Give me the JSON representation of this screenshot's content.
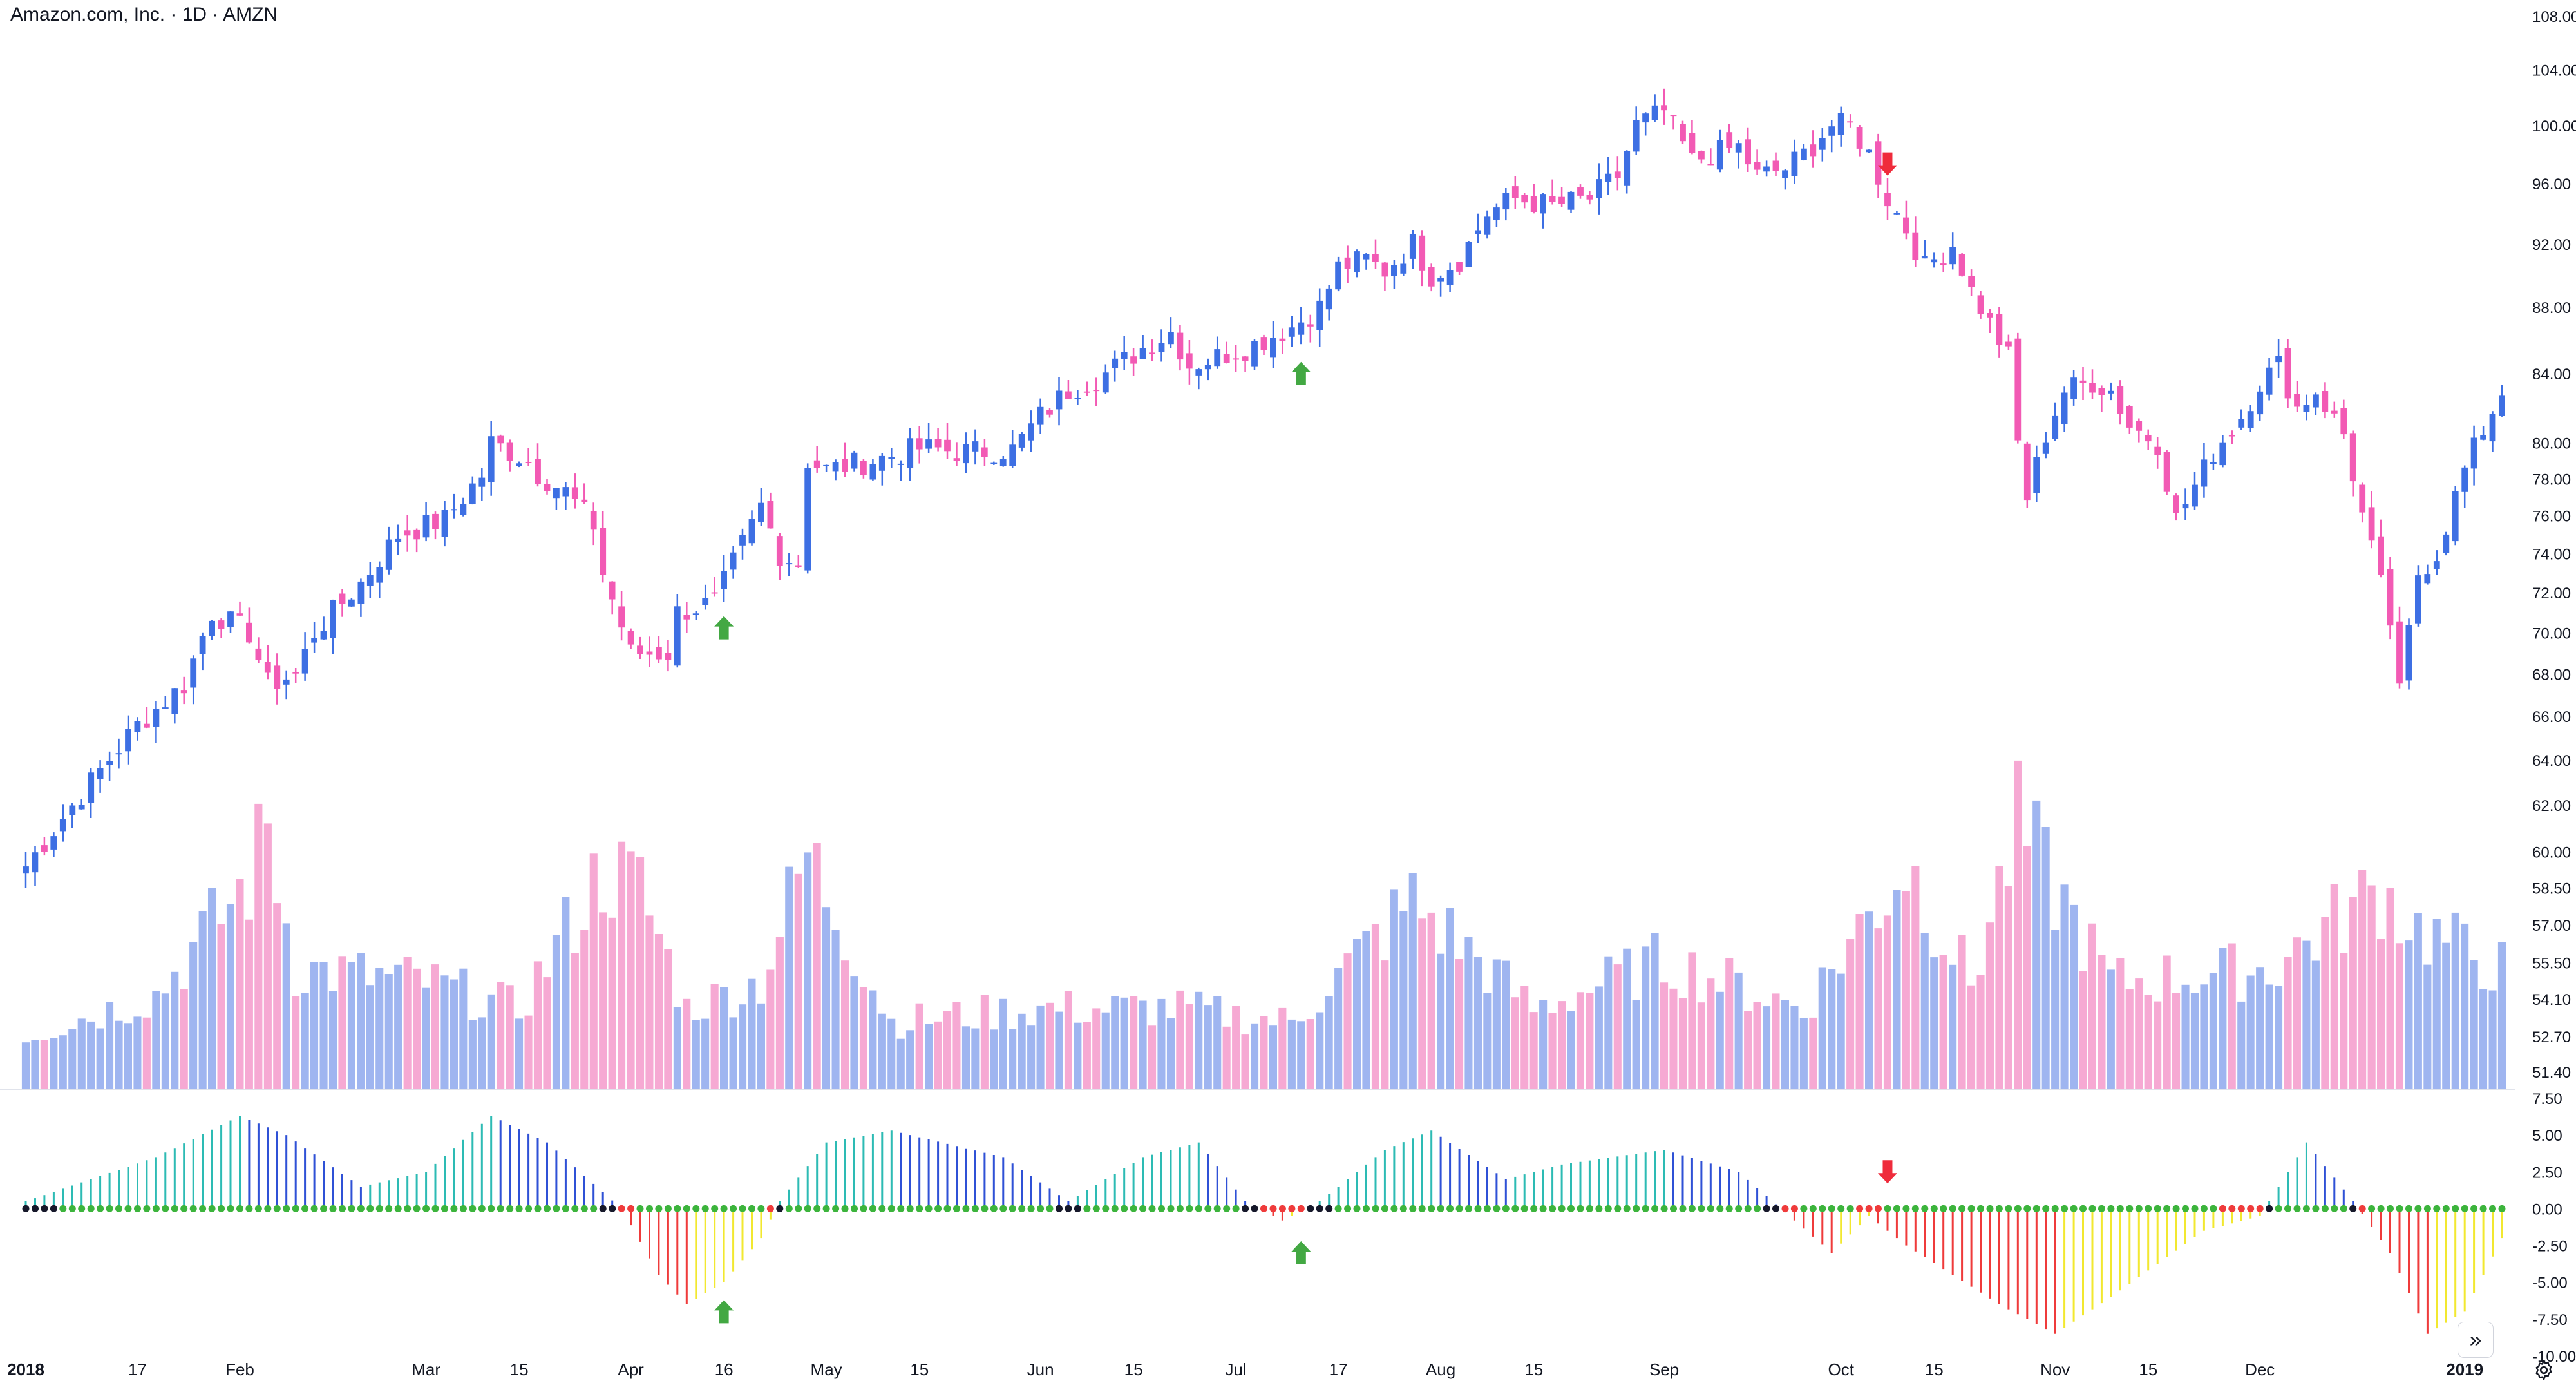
{
  "header": {
    "symbol_title": "Amazon.com, Inc. · 1D · AMZN"
  },
  "colors": {
    "up": "#3d6fe3",
    "down": "#f25ab4",
    "vol_up": "#9fb5f0",
    "vol_down": "#f6a9d3",
    "osc_strong_up": "#2dbbb4",
    "osc_weak_up": "#2f51d6",
    "osc_strong_down": "#ef3b3b",
    "osc_weak_down": "#f2e830",
    "dot_on": "#3cb43c",
    "dot_off": "#16182a",
    "dot_red": "#ef3b3b",
    "arrow_up": "#43a843",
    "arrow_down": "#ef2b3b",
    "grid": "#ffffff",
    "axis_text": "#131722",
    "pane_border": "#e0e3eb"
  },
  "chart_data": [
    {
      "type": "candlestick",
      "name": "price",
      "title": "Amazon.com, Inc. · 1D · AMZN",
      "y_scale": "log",
      "ylim": [
        50.8,
        108.0
      ],
      "y_ticks": [
        "108.00",
        "104.00",
        "100.00",
        "96.00",
        "92.00",
        "88.00",
        "84.00",
        "80.00",
        "78.00",
        "76.00",
        "74.00",
        "72.00",
        "70.00",
        "68.00",
        "66.00",
        "64.00",
        "62.00",
        "60.00",
        "58.50",
        "57.00",
        "55.50",
        "54.10",
        "52.70",
        "51.40"
      ],
      "x_ticks": [
        {
          "label": "2018",
          "bold": true,
          "d": "2018-01-01"
        },
        {
          "label": "17",
          "bold": false,
          "d": "2018-01-17"
        },
        {
          "label": "Feb",
          "bold": false,
          "d": "2018-02-01"
        },
        {
          "label": "Mar",
          "bold": false,
          "d": "2018-03-01"
        },
        {
          "label": "15",
          "bold": false,
          "d": "2018-03-15"
        },
        {
          "label": "Apr",
          "bold": false,
          "d": "2018-04-02"
        },
        {
          "label": "16",
          "bold": false,
          "d": "2018-04-16"
        },
        {
          "label": "May",
          "bold": false,
          "d": "2018-05-01"
        },
        {
          "label": "15",
          "bold": false,
          "d": "2018-05-15"
        },
        {
          "label": "Jun",
          "bold": false,
          "d": "2018-06-01"
        },
        {
          "label": "15",
          "bold": false,
          "d": "2018-06-15"
        },
        {
          "label": "Jul",
          "bold": false,
          "d": "2018-07-02"
        },
        {
          "label": "17",
          "bold": false,
          "d": "2018-07-17"
        },
        {
          "label": "Aug",
          "bold": false,
          "d": "2018-08-01"
        },
        {
          "label": "15",
          "bold": false,
          "d": "2018-08-15"
        },
        {
          "label": "Sep",
          "bold": false,
          "d": "2018-09-04"
        },
        {
          "label": "Oct",
          "bold": false,
          "d": "2018-10-01"
        },
        {
          "label": "15",
          "bold": false,
          "d": "2018-10-15"
        },
        {
          "label": "Nov",
          "bold": false,
          "d": "2018-11-01"
        },
        {
          "label": "15",
          "bold": false,
          "d": "2018-11-15"
        },
        {
          "label": "Dec",
          "bold": false,
          "d": "2018-12-03"
        },
        {
          "label": "2019",
          "bold": true,
          "d": "2019-01-02"
        }
      ],
      "closes": [
        [
          "2018-01-01",
          59.4
        ],
        [
          "2018-01-17",
          65.6
        ],
        [
          "2018-01-24",
          67.5
        ],
        [
          "2018-01-29",
          71.0
        ],
        [
          "2018-02-02",
          70.0
        ],
        [
          "2018-02-06",
          67.5
        ],
        [
          "2018-02-09",
          68.0
        ],
        [
          "2018-02-13",
          70.0
        ],
        [
          "2018-02-20",
          72.5
        ],
        [
          "2018-02-26",
          75.0
        ],
        [
          "2018-03-05",
          75.8
        ],
        [
          "2018-03-09",
          78.2
        ],
        [
          "2018-03-12",
          80.0
        ],
        [
          "2018-03-16",
          79.0
        ],
        [
          "2018-03-19",
          78.3
        ],
        [
          "2018-03-22",
          77.3
        ],
        [
          "2018-03-27",
          75.5
        ],
        [
          "2018-03-28",
          73.0
        ],
        [
          "2018-04-02",
          69.0
        ],
        [
          "2018-04-06",
          69.0
        ],
        [
          "2018-04-09",
          71.0
        ],
        [
          "2018-04-13",
          71.5
        ],
        [
          "2018-04-16",
          72.5
        ],
        [
          "2018-04-20",
          76.5
        ],
        [
          "2018-04-24",
          74.0
        ],
        [
          "2018-04-26",
          73.5
        ],
        [
          "2018-04-27",
          79.0
        ],
        [
          "2018-05-01",
          78.5
        ],
        [
          "2018-05-08",
          79.0
        ],
        [
          "2018-05-15",
          79.7
        ],
        [
          "2018-05-22",
          79.5
        ],
        [
          "2018-05-29",
          79.6
        ],
        [
          "2018-06-01",
          81.5
        ],
        [
          "2018-06-06",
          83.0
        ],
        [
          "2018-06-12",
          84.0
        ],
        [
          "2018-06-18",
          85.5
        ],
        [
          "2018-06-21",
          86.5
        ],
        [
          "2018-06-25",
          84.5
        ],
        [
          "2018-06-28",
          85.0
        ],
        [
          "2018-07-03",
          85.5
        ],
        [
          "2018-07-10",
          86.8
        ],
        [
          "2018-07-13",
          88.0
        ],
        [
          "2018-07-17",
          90.5
        ],
        [
          "2018-07-20",
          91.0
        ],
        [
          "2018-07-24",
          90.3
        ],
        [
          "2018-07-27",
          92.0
        ],
        [
          "2018-07-31",
          90.0
        ],
        [
          "2018-08-03",
          91.0
        ],
        [
          "2018-08-08",
          94.0
        ],
        [
          "2018-08-13",
          95.0
        ],
        [
          "2018-08-17",
          94.5
        ],
        [
          "2018-08-23",
          95.0
        ],
        [
          "2018-08-28",
          96.5
        ],
        [
          "2018-08-30",
          100.0
        ],
        [
          "2018-09-04",
          101.0
        ],
        [
          "2018-09-07",
          97.5
        ],
        [
          "2018-09-11",
          98.0
        ],
        [
          "2018-09-14",
          98.5
        ],
        [
          "2018-09-18",
          96.5
        ],
        [
          "2018-09-21",
          97.0
        ],
        [
          "2018-09-25",
          98.0
        ],
        [
          "2018-09-28",
          100.0
        ],
        [
          "2018-10-02",
          100.0
        ],
        [
          "2018-10-04",
          98.0
        ],
        [
          "2018-10-08",
          95.0
        ],
        [
          "2018-10-10",
          93.0
        ],
        [
          "2018-10-12",
          90.5
        ],
        [
          "2018-10-17",
          92.0
        ],
        [
          "2018-10-19",
          89.0
        ],
        [
          "2018-10-23",
          87.0
        ],
        [
          "2018-10-25",
          85.0
        ],
        [
          "2018-10-26",
          80.0
        ],
        [
          "2018-10-29",
          77.0
        ],
        [
          "2018-10-31",
          80.5
        ],
        [
          "2018-11-02",
          83.0
        ],
        [
          "2018-11-07",
          83.5
        ],
        [
          "2018-11-09",
          83.0
        ],
        [
          "2018-11-13",
          81.0
        ],
        [
          "2018-11-16",
          80.0
        ],
        [
          "2018-11-20",
          75.8
        ],
        [
          "2018-11-23",
          78.5
        ],
        [
          "2018-11-26",
          79.5
        ],
        [
          "2018-11-29",
          81.5
        ],
        [
          "2018-12-03",
          83.5
        ],
        [
          "2018-12-05",
          84.5
        ],
        [
          "2018-12-07",
          82.0
        ],
        [
          "2018-12-11",
          83.0
        ],
        [
          "2018-12-14",
          80.5
        ],
        [
          "2018-12-18",
          76.0
        ],
        [
          "2018-12-21",
          70.5
        ],
        [
          "2018-12-24",
          67.0
        ],
        [
          "2018-12-26",
          73.0
        ],
        [
          "2018-12-28",
          74.0
        ],
        [
          "2019-01-02",
          78.5
        ],
        [
          "2019-01-08",
          83.0
        ]
      ],
      "signals": [
        {
          "type": "buy",
          "d": "2018-04-16"
        },
        {
          "type": "buy",
          "d": "2018-07-11"
        },
        {
          "type": "sell",
          "d": "2018-10-08"
        }
      ]
    },
    {
      "type": "bar",
      "name": "volume",
      "values_relative_note": "volume shown as bars scaled to pane; up-days blue, down-days pink",
      "peaks": [
        [
          "2018-01-01",
          0.2
        ],
        [
          "2018-01-20",
          0.35
        ],
        [
          "2018-02-02",
          0.78
        ],
        [
          "2018-02-06",
          0.98
        ],
        [
          "2018-02-10",
          0.45
        ],
        [
          "2018-03-01",
          0.4
        ],
        [
          "2018-03-15",
          0.3
        ],
        [
          "2018-03-28",
          0.82
        ],
        [
          "2018-04-03",
          0.75
        ],
        [
          "2018-04-10",
          0.3
        ],
        [
          "2018-04-20",
          0.4
        ],
        [
          "2018-04-27",
          0.88
        ],
        [
          "2018-05-10",
          0.25
        ],
        [
          "2018-06-01",
          0.3
        ],
        [
          "2018-06-22",
          0.3
        ],
        [
          "2018-07-10",
          0.25
        ],
        [
          "2018-07-27",
          0.7
        ],
        [
          "2018-08-15",
          0.3
        ],
        [
          "2018-09-04",
          0.48
        ],
        [
          "2018-09-25",
          0.3
        ],
        [
          "2018-10-10",
          0.85
        ],
        [
          "2018-10-20",
          0.4
        ],
        [
          "2018-10-26",
          0.98
        ],
        [
          "2018-11-10",
          0.4
        ],
        [
          "2018-12-04",
          0.45
        ],
        [
          "2018-12-20",
          0.75
        ],
        [
          "2018-12-26",
          0.6
        ],
        [
          "2019-01-08",
          0.45
        ]
      ]
    },
    {
      "type": "bar",
      "name": "squeeze-momentum",
      "ylim": [
        -10.0,
        7.5
      ],
      "y_ticks": [
        "7.50",
        "5.00",
        "2.50",
        "0.00",
        "-2.50",
        "-5.00",
        "-7.50",
        "-10.00"
      ],
      "momentum": [
        [
          "2018-01-01",
          0.5
        ],
        [
          "2018-01-20",
          3.5
        ],
        [
          "2018-02-01",
          6.3
        ],
        [
          "2018-02-08",
          5.0
        ],
        [
          "2018-02-20",
          1.5
        ],
        [
          "2018-03-01",
          2.5
        ],
        [
          "2018-03-12",
          6.3
        ],
        [
          "2018-03-20",
          4.5
        ],
        [
          "2018-03-30",
          0.0
        ],
        [
          "2018-04-05",
          -4.5
        ],
        [
          "2018-04-10",
          -6.5
        ],
        [
          "2018-04-16",
          -5.0
        ],
        [
          "2018-04-20",
          -2.0
        ],
        [
          "2018-04-24",
          0.5
        ],
        [
          "2018-05-01",
          4.5
        ],
        [
          "2018-05-10",
          5.3
        ],
        [
          "2018-05-28",
          3.5
        ],
        [
          "2018-06-06",
          0.5
        ],
        [
          "2018-06-18",
          3.5
        ],
        [
          "2018-06-26",
          4.5
        ],
        [
          "2018-07-03",
          0.5
        ],
        [
          "2018-07-09",
          -0.8
        ],
        [
          "2018-07-13",
          0.5
        ],
        [
          "2018-07-24",
          4.0
        ],
        [
          "2018-07-31",
          5.3
        ],
        [
          "2018-08-10",
          2.0
        ],
        [
          "2018-08-20",
          3.0
        ],
        [
          "2018-09-04",
          4.0
        ],
        [
          "2018-09-14",
          2.5
        ],
        [
          "2018-09-20",
          0.3
        ],
        [
          "2018-09-28",
          -3.0
        ],
        [
          "2018-10-04",
          -0.5
        ],
        [
          "2018-10-10",
          -2.5
        ],
        [
          "2018-10-24",
          -6.5
        ],
        [
          "2018-11-01",
          -8.5
        ],
        [
          "2018-11-09",
          -6.0
        ],
        [
          "2018-11-23",
          -1.5
        ],
        [
          "2018-12-03",
          -0.5
        ],
        [
          "2018-12-10",
          4.5
        ],
        [
          "2018-12-17",
          0.5
        ],
        [
          "2018-12-21",
          -3.0
        ],
        [
          "2018-12-27",
          -8.5
        ],
        [
          "2019-01-02",
          -7.0
        ],
        [
          "2019-01-08",
          -2.0
        ]
      ],
      "dot_series": "dark = squeeze on, green = squeeze off, red = squeeze firing",
      "signals": [
        {
          "type": "buy",
          "d": "2018-04-16",
          "value": -7.0
        },
        {
          "type": "buy",
          "d": "2018-07-11",
          "value": -3.0
        },
        {
          "type": "sell",
          "d": "2018-10-08",
          "value": 2.5
        }
      ]
    }
  ],
  "controls": {
    "scroll_label": "»",
    "settings_icon": "gear-icon"
  }
}
